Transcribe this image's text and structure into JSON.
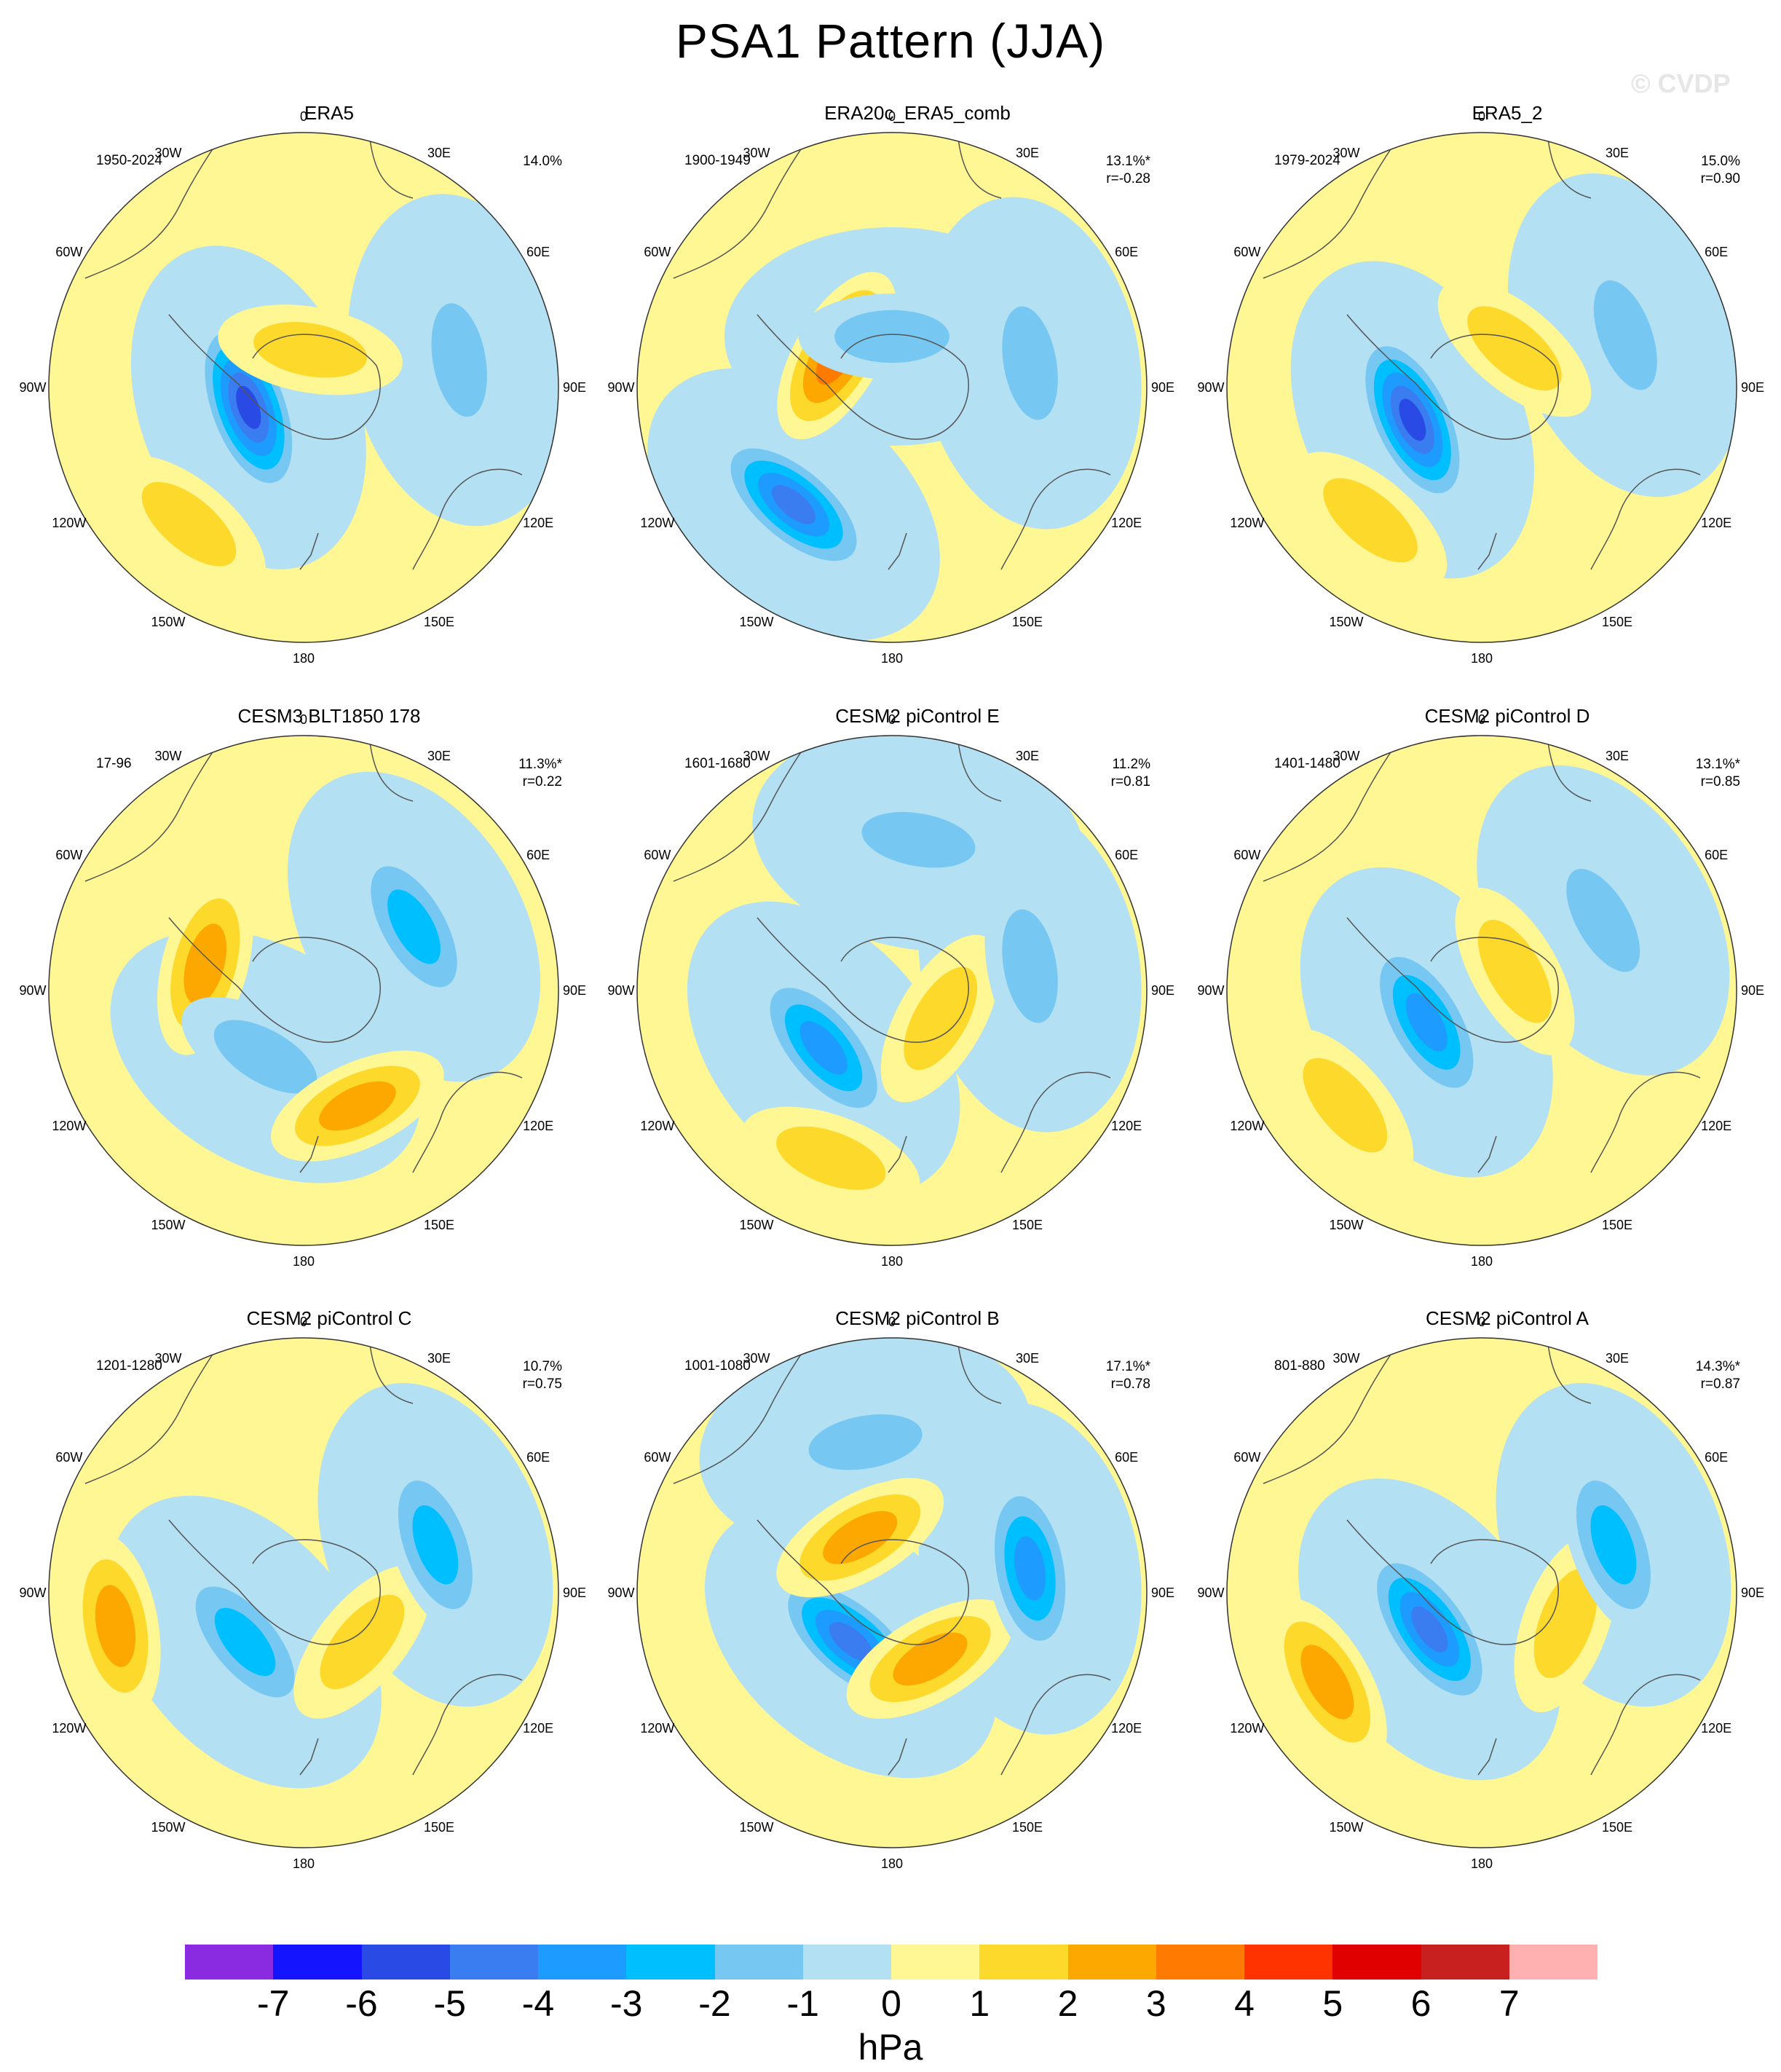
{
  "title": "PSA1 Pattern (JJA)",
  "watermark": "© CVDP",
  "unit": "hPa",
  "colorbar": {
    "ticks": [
      "-7",
      "-6",
      "-5",
      "-4",
      "-3",
      "-2",
      "-1",
      "0",
      "1",
      "2",
      "3",
      "4",
      "5",
      "6",
      "7"
    ],
    "colors": [
      "#8a2be2",
      "#1414ff",
      "#2a4ae6",
      "#3a7df0",
      "#1e9bff",
      "#00bfff",
      "#76c8f2",
      "#b3e0f2",
      "#fff694",
      "#fdd92c",
      "#fda800",
      "#ff7a00",
      "#ff3300",
      "#e00000",
      "#c81f1f",
      "#ffb1b1"
    ]
  },
  "lon_labels": [
    "0",
    "30E",
    "60E",
    "90E",
    "120E",
    "150E",
    "180",
    "150W",
    "120W",
    "90W",
    "60W",
    "30W"
  ],
  "chart_data": [
    {
      "type": "heatmap",
      "title": "ERA5",
      "period": "1950-2024",
      "variance": "14.0%",
      "pattern_corr": "",
      "centers": [
        {
          "label": "negative",
          "lon": -110,
          "colat": 0.23,
          "value": -5.5
        },
        {
          "label": "positive",
          "lon": -140,
          "colat": 0.7,
          "value": 2.0
        },
        {
          "label": "positive",
          "lon": 10,
          "colat": 0.15,
          "value": 1.5
        },
        {
          "label": "negative",
          "lon": 80,
          "colat": 0.62,
          "value": -1.5
        }
      ]
    },
    {
      "type": "heatmap",
      "title": "ERA20c_ERA5_comb",
      "period": "1900-1949",
      "variance": "13.1%*",
      "pattern_corr": "r=-0.28",
      "centers": [
        {
          "label": "positive",
          "lon": -60,
          "colat": 0.25,
          "value": 3.5
        },
        {
          "label": "negative",
          "lon": -140,
          "colat": 0.6,
          "value": -5.0
        },
        {
          "label": "negative",
          "lon": 80,
          "colat": 0.55,
          "value": -1.5
        },
        {
          "label": "negative",
          "lon": 0,
          "colat": 0.2,
          "value": -1.2
        }
      ]
    },
    {
      "type": "heatmap",
      "title": "ERA5_2",
      "period": "1979-2024",
      "variance": "15.0%",
      "pattern_corr": "r=0.90",
      "centers": [
        {
          "label": "negative",
          "lon": -115,
          "colat": 0.3,
          "value": -5.5
        },
        {
          "label": "positive",
          "lon": -140,
          "colat": 0.68,
          "value": 2.0
        },
        {
          "label": "positive",
          "lon": 40,
          "colat": 0.2,
          "value": 1.5
        },
        {
          "label": "negative",
          "lon": 70,
          "colat": 0.6,
          "value": -1.2
        }
      ]
    },
    {
      "type": "heatmap",
      "title": "CESM3 BLT1850 178",
      "period": "17-96",
      "variance": "11.3%*",
      "pattern_corr": "r=0.22",
      "centers": [
        {
          "label": "positive",
          "lon": -75,
          "colat": 0.4,
          "value": 3.0
        },
        {
          "label": "negative",
          "lon": -150,
          "colat": 0.3,
          "value": -1.8
        },
        {
          "label": "negative",
          "lon": 60,
          "colat": 0.5,
          "value": -3.0
        },
        {
          "label": "positive",
          "lon": 155,
          "colat": 0.5,
          "value": 2.2
        }
      ]
    },
    {
      "type": "heatmap",
      "title": "CESM2 piControl E",
      "period": "1601-1680",
      "variance": "11.2%",
      "pattern_corr": "r=0.81",
      "centers": [
        {
          "label": "negative",
          "lon": -130,
          "colat": 0.35,
          "value": -4.0
        },
        {
          "label": "positive",
          "lon": -160,
          "colat": 0.7,
          "value": 2.0
        },
        {
          "label": "positive",
          "lon": 120,
          "colat": 0.22,
          "value": 2.0
        },
        {
          "label": "negative",
          "lon": 80,
          "colat": 0.55,
          "value": -1.8
        },
        {
          "label": "negative",
          "lon": 10,
          "colat": 0.6,
          "value": -1.5
        }
      ]
    },
    {
      "type": "heatmap",
      "title": "CESM2 piControl D",
      "period": "1401-1480",
      "variance": "13.1%*",
      "pattern_corr": "r=0.85",
      "centers": [
        {
          "label": "negative",
          "lon": -120,
          "colat": 0.25,
          "value": -3.5
        },
        {
          "label": "positive",
          "lon": -130,
          "colat": 0.7,
          "value": 2.0
        },
        {
          "label": "positive",
          "lon": 60,
          "colat": 0.15,
          "value": 2.0
        },
        {
          "label": "negative",
          "lon": 60,
          "colat": 0.55,
          "value": -1.5
        }
      ]
    },
    {
      "type": "heatmap",
      "title": "CESM2 piControl C",
      "period": "1201-1280",
      "variance": "10.7%",
      "pattern_corr": "r=0.75",
      "centers": [
        {
          "label": "negative",
          "lon": -130,
          "colat": 0.3,
          "value": -3.0
        },
        {
          "label": "positive",
          "lon": -100,
          "colat": 0.75,
          "value": 3.0
        },
        {
          "label": "positive",
          "lon": 130,
          "colat": 0.3,
          "value": 2.0
        },
        {
          "label": "negative",
          "lon": 70,
          "colat": 0.55,
          "value": -3.0
        }
      ]
    },
    {
      "type": "heatmap",
      "title": "CESM2 piControl B",
      "period": "1001-1080",
      "variance": "17.1%*",
      "pattern_corr": "r=0.78",
      "centers": [
        {
          "label": "negative",
          "lon": -140,
          "colat": 0.25,
          "value": -4.5
        },
        {
          "label": "positive",
          "lon": -30,
          "colat": 0.25,
          "value": 2.5
        },
        {
          "label": "positive",
          "lon": 150,
          "colat": 0.3,
          "value": 3.0
        },
        {
          "label": "negative",
          "lon": 80,
          "colat": 0.55,
          "value": -4.0
        },
        {
          "label": "negative",
          "lon": -10,
          "colat": 0.6,
          "value": -1.5
        }
      ]
    },
    {
      "type": "heatmap",
      "title": "CESM2 piControl A",
      "period": "801-880",
      "variance": "14.3%*",
      "pattern_corr": "r=0.87",
      "centers": [
        {
          "label": "negative",
          "lon": -125,
          "colat": 0.25,
          "value": -5.0
        },
        {
          "label": "positive",
          "lon": -120,
          "colat": 0.7,
          "value": 3.0
        },
        {
          "label": "positive",
          "lon": 110,
          "colat": 0.35,
          "value": 2.0
        },
        {
          "label": "negative",
          "lon": 70,
          "colat": 0.55,
          "value": -3.0
        }
      ]
    }
  ]
}
